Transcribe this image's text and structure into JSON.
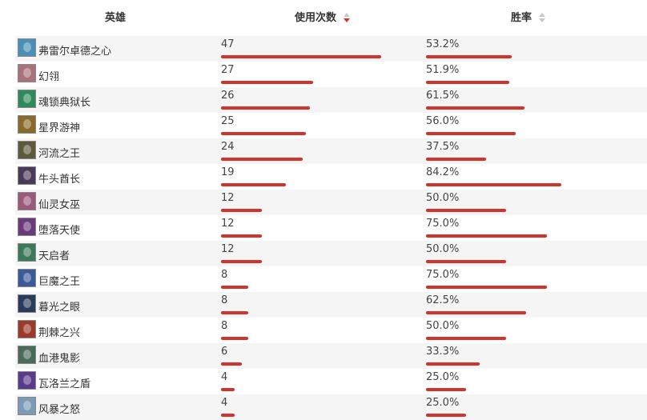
{
  "header": {
    "hero": "英雄",
    "usage": "使用次数",
    "winrate": "胜率"
  },
  "colors": {
    "bar": "#d0342c",
    "sort_active": "#d0342c",
    "sort_inactive": "#c7c7c7"
  },
  "rows": [
    {
      "name": "弗雷尔卓德之心",
      "usage": "47",
      "winrate": "53.2%",
      "usage_num": 47,
      "win_num": 53.2,
      "avatar_color": "#4a8fb5"
    },
    {
      "name": "幻翎",
      "usage": "27",
      "winrate": "51.9%",
      "usage_num": 27,
      "win_num": 51.9,
      "avatar_color": "#a9727a"
    },
    {
      "name": "魂锁典狱长",
      "usage": "26",
      "winrate": "61.5%",
      "usage_num": 26,
      "win_num": 61.5,
      "avatar_color": "#2f8a5a"
    },
    {
      "name": "星界游神",
      "usage": "25",
      "winrate": "56.0%",
      "usage_num": 25,
      "win_num": 56.0,
      "avatar_color": "#8a6a2a"
    },
    {
      "name": "河流之王",
      "usage": "24",
      "winrate": "37.5%",
      "usage_num": 24,
      "win_num": 37.5,
      "avatar_color": "#5c5a3a"
    },
    {
      "name": "牛头酋长",
      "usage": "19",
      "winrate": "84.2%",
      "usage_num": 19,
      "win_num": 84.2,
      "avatar_color": "#4a3a5a"
    },
    {
      "name": "仙灵女巫",
      "usage": "12",
      "winrate": "50.0%",
      "usage_num": 12,
      "win_num": 50.0,
      "avatar_color": "#9a5a7a"
    },
    {
      "name": "堕落天使",
      "usage": "12",
      "winrate": "75.0%",
      "usage_num": 12,
      "win_num": 75.0,
      "avatar_color": "#6a3a7a"
    },
    {
      "name": "天启者",
      "usage": "12",
      "winrate": "50.0%",
      "usage_num": 12,
      "win_num": 50.0,
      "avatar_color": "#3a7a5a"
    },
    {
      "name": "巨魔之王",
      "usage": "8",
      "winrate": "75.0%",
      "usage_num": 8,
      "win_num": 75.0,
      "avatar_color": "#3a5a9a"
    },
    {
      "name": "暮光之眼",
      "usage": "8",
      "winrate": "62.5%",
      "usage_num": 8,
      "win_num": 62.5,
      "avatar_color": "#2a3a5a"
    },
    {
      "name": "荆棘之兴",
      "usage": "8",
      "winrate": "50.0%",
      "usage_num": 8,
      "win_num": 50.0,
      "avatar_color": "#9a3a2a"
    },
    {
      "name": "血港鬼影",
      "usage": "6",
      "winrate": "33.3%",
      "usage_num": 6,
      "win_num": 33.3,
      "avatar_color": "#4a6a5a"
    },
    {
      "name": "瓦洛兰之盾",
      "usage": "4",
      "winrate": "25.0%",
      "usage_num": 4,
      "win_num": 25.0,
      "avatar_color": "#5a3a8a"
    },
    {
      "name": "风暴之怒",
      "usage": "4",
      "winrate": "25.0%",
      "usage_num": 4,
      "win_num": 25.0,
      "avatar_color": "#7a9ab5"
    }
  ]
}
